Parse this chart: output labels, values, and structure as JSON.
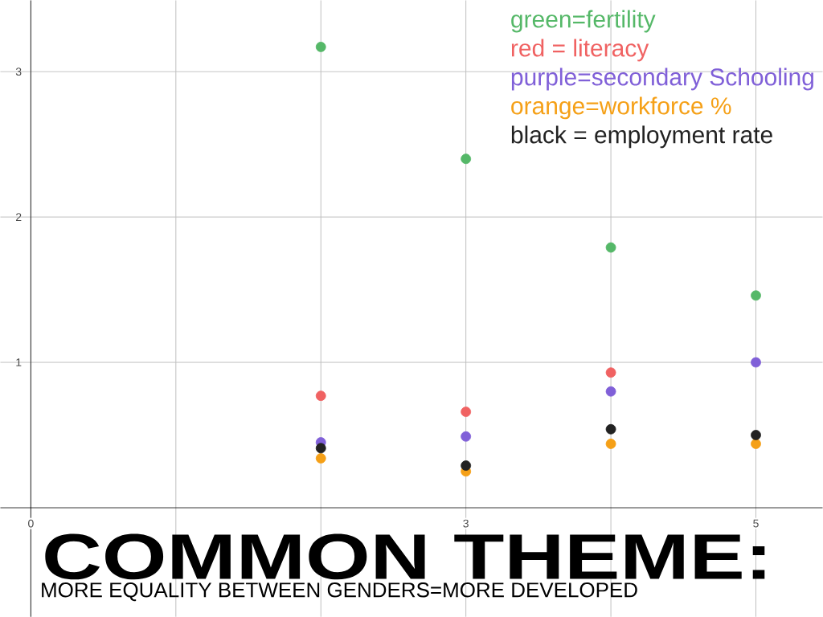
{
  "chart_data": {
    "type": "scatter",
    "title": "COMMON THEME:",
    "subtitle": "MORE EQUALITY BETWEEN GENDERS=MORE DEVELOPED",
    "x": [
      2,
      3,
      4,
      5
    ],
    "series": [
      {
        "name": "green=fertility",
        "color": "#55b868",
        "values": [
          3.17,
          2.4,
          1.79,
          1.46
        ]
      },
      {
        "name": "red = literacy",
        "color": "#f06262",
        "values": [
          0.77,
          0.66,
          0.93,
          null
        ]
      },
      {
        "name": "purple=secondary Schooling",
        "color": "#8060d8",
        "values": [
          0.45,
          0.49,
          0.8,
          1.0
        ]
      },
      {
        "name": "orange=workforce %",
        "color": "#f5a017",
        "values": [
          0.34,
          0.25,
          0.44,
          0.44
        ]
      },
      {
        "name": "black = employment rate",
        "color": "#222222",
        "values": [
          0.41,
          0.29,
          0.54,
          0.5
        ]
      }
    ],
    "xlim": [
      -0.21,
      5.46
    ],
    "ylim": [
      -0.75,
      3.49
    ],
    "xticks": [
      0,
      {
        "value": 1,
        "label": null
      },
      {
        "value": 2,
        "label": null
      },
      3,
      {
        "value": 4,
        "label": null
      },
      5
    ],
    "yticks": [
      1,
      2,
      3
    ],
    "grid": true,
    "marker": "circle",
    "legend": "top right"
  }
}
